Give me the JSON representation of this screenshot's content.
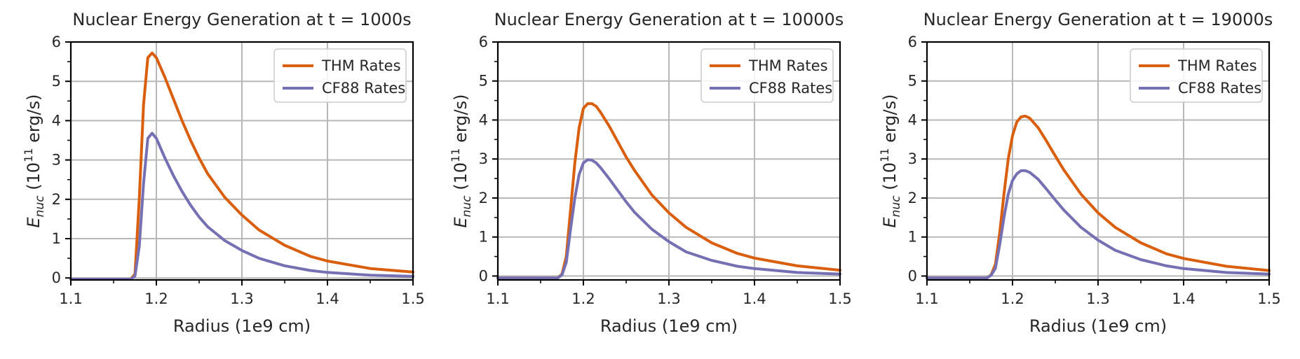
{
  "colors": {
    "thm": "#d95f0e",
    "cf88": "#7570b3",
    "grid": "#b8b8b8"
  },
  "chart_data": [
    {
      "type": "line",
      "title": "Nuclear Energy Generation at t = 1000s",
      "xlabel": "Radius (1e9 cm)",
      "ylabel_main": "E",
      "ylabel_sub": "nuc",
      "ylabel_open": " (10",
      "ylabel_sup": "11",
      "ylabel_close": " erg/s)",
      "xlim": [
        1.1,
        1.5
      ],
      "ylim": [
        -0.05,
        6.0
      ],
      "xticks": [
        1.1,
        1.2,
        1.3,
        1.4,
        1.5
      ],
      "xtick_labels": [
        "1.1",
        "1.2",
        "1.3",
        "1.4",
        "1.5"
      ],
      "yticks": [
        0,
        1,
        2,
        3,
        4,
        5,
        6
      ],
      "ytick_labels": [
        "0",
        "1",
        "2",
        "3",
        "4",
        "5",
        "6"
      ],
      "grid": true,
      "legend": "top-right",
      "series": [
        {
          "name": "THM Rates",
          "color_key": "thm",
          "x": [
            1.1,
            1.17,
            1.175,
            1.18,
            1.185,
            1.19,
            1.195,
            1.2,
            1.21,
            1.22,
            1.23,
            1.24,
            1.25,
            1.26,
            1.28,
            1.3,
            1.32,
            1.35,
            1.38,
            1.4,
            1.45,
            1.5
          ],
          "y": [
            -0.03,
            -0.03,
            0.1,
            2.0,
            4.4,
            5.6,
            5.72,
            5.6,
            5.1,
            4.55,
            4.0,
            3.5,
            3.05,
            2.65,
            2.05,
            1.6,
            1.22,
            0.83,
            0.55,
            0.43,
            0.24,
            0.15
          ]
        },
        {
          "name": "CF88 Rates",
          "color_key": "cf88",
          "x": [
            1.1,
            1.17,
            1.175,
            1.18,
            1.185,
            1.19,
            1.195,
            1.2,
            1.21,
            1.22,
            1.23,
            1.24,
            1.25,
            1.26,
            1.28,
            1.3,
            1.32,
            1.35,
            1.38,
            1.4,
            1.45,
            1.5
          ],
          "y": [
            -0.03,
            -0.03,
            0.05,
            0.8,
            2.4,
            3.55,
            3.68,
            3.55,
            3.05,
            2.6,
            2.2,
            1.85,
            1.55,
            1.3,
            0.95,
            0.7,
            0.5,
            0.31,
            0.19,
            0.14,
            0.07,
            0.04
          ]
        }
      ]
    },
    {
      "type": "line",
      "title": "Nuclear Energy Generation at t = 10000s",
      "xlabel": "Radius (1e9 cm)",
      "ylabel_main": "E",
      "ylabel_sub": "nuc",
      "ylabel_open": " (10",
      "ylabel_sup": "11",
      "ylabel_close": " erg/s)",
      "xlim": [
        1.1,
        1.5
      ],
      "ylim": [
        -0.1,
        6.0
      ],
      "xticks": [
        1.1,
        1.2,
        1.3,
        1.4,
        1.5
      ],
      "xtick_labels": [
        "1.1",
        "1.2",
        "1.3",
        "1.4",
        "1.5"
      ],
      "yticks": [
        0,
        1,
        2,
        3,
        4,
        5,
        6
      ],
      "ytick_labels": [
        "0",
        "1",
        "2",
        "3",
        "4",
        "5",
        "6"
      ],
      "grid": true,
      "legend": "top-right",
      "series": [
        {
          "name": "THM Rates",
          "color_key": "thm",
          "x": [
            1.1,
            1.17,
            1.175,
            1.18,
            1.185,
            1.19,
            1.195,
            1.2,
            1.205,
            1.21,
            1.215,
            1.22,
            1.23,
            1.24,
            1.25,
            1.26,
            1.28,
            1.3,
            1.32,
            1.35,
            1.38,
            1.4,
            1.45,
            1.5
          ],
          "y": [
            -0.05,
            -0.05,
            0.05,
            0.5,
            1.7,
            2.9,
            3.8,
            4.3,
            4.42,
            4.42,
            4.35,
            4.2,
            3.85,
            3.45,
            3.05,
            2.7,
            2.08,
            1.62,
            1.25,
            0.85,
            0.58,
            0.46,
            0.26,
            0.15
          ]
        },
        {
          "name": "CF88 Rates",
          "color_key": "cf88",
          "x": [
            1.1,
            1.17,
            1.175,
            1.18,
            1.185,
            1.19,
            1.195,
            1.2,
            1.205,
            1.21,
            1.215,
            1.22,
            1.23,
            1.24,
            1.25,
            1.26,
            1.28,
            1.3,
            1.32,
            1.35,
            1.38,
            1.4,
            1.45,
            1.5
          ],
          "y": [
            -0.05,
            -0.05,
            0.03,
            0.35,
            1.2,
            2.0,
            2.6,
            2.9,
            2.98,
            2.97,
            2.9,
            2.78,
            2.5,
            2.2,
            1.9,
            1.63,
            1.2,
            0.88,
            0.62,
            0.4,
            0.25,
            0.19,
            0.09,
            0.05
          ]
        }
      ]
    },
    {
      "type": "line",
      "title": "Nuclear Energy Generation at t = 19000s",
      "xlabel": "Radius (1e9 cm)",
      "ylabel_main": "E",
      "ylabel_sub": "nuc",
      "ylabel_open": " (10",
      "ylabel_sup": "11",
      "ylabel_close": " erg/s)",
      "xlim": [
        1.1,
        1.5
      ],
      "ylim": [
        -0.1,
        6.0
      ],
      "xticks": [
        1.1,
        1.2,
        1.3,
        1.4,
        1.5
      ],
      "xtick_labels": [
        "1.1",
        "1.2",
        "1.3",
        "1.4",
        "1.5"
      ],
      "yticks": [
        0,
        1,
        2,
        3,
        4,
        5,
        6
      ],
      "ytick_labels": [
        "0",
        "1",
        "2",
        "3",
        "4",
        "5",
        "6"
      ],
      "grid": true,
      "legend": "top-right",
      "series": [
        {
          "name": "THM Rates",
          "color_key": "thm",
          "x": [
            1.1,
            1.17,
            1.175,
            1.18,
            1.185,
            1.19,
            1.195,
            1.2,
            1.205,
            1.21,
            1.215,
            1.22,
            1.23,
            1.24,
            1.25,
            1.26,
            1.28,
            1.3,
            1.32,
            1.35,
            1.38,
            1.4,
            1.45,
            1.5
          ],
          "y": [
            -0.05,
            -0.05,
            0.03,
            0.3,
            1.1,
            2.1,
            3.0,
            3.6,
            3.95,
            4.08,
            4.1,
            4.05,
            3.8,
            3.45,
            3.08,
            2.72,
            2.1,
            1.62,
            1.25,
            0.85,
            0.57,
            0.45,
            0.25,
            0.14
          ]
        },
        {
          "name": "CF88 Rates",
          "color_key": "cf88",
          "x": [
            1.1,
            1.17,
            1.175,
            1.18,
            1.185,
            1.19,
            1.195,
            1.2,
            1.205,
            1.21,
            1.215,
            1.22,
            1.23,
            1.24,
            1.25,
            1.26,
            1.28,
            1.3,
            1.32,
            1.35,
            1.38,
            1.4,
            1.45,
            1.5
          ],
          "y": [
            -0.05,
            -0.05,
            0.02,
            0.2,
            0.8,
            1.5,
            2.1,
            2.45,
            2.62,
            2.7,
            2.7,
            2.66,
            2.48,
            2.22,
            1.95,
            1.69,
            1.25,
            0.92,
            0.66,
            0.42,
            0.26,
            0.19,
            0.09,
            0.05
          ]
        }
      ]
    }
  ]
}
